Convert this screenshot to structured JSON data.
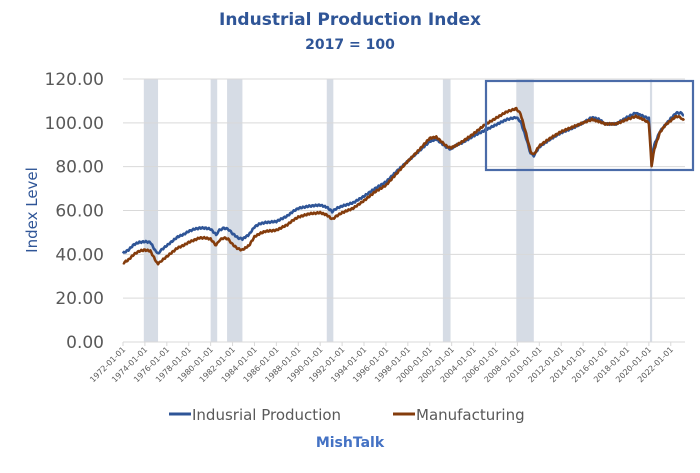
{
  "chart_data": {
    "type": "line",
    "title": "Industrial Production Index",
    "subtitle": "2017 = 100",
    "ylabel": "Index Level",
    "xlabel": "",
    "ylim": [
      0,
      120
    ],
    "xlim": [
      1972.0,
      2023.3
    ],
    "y_ticks": [
      "0.00",
      "20.00",
      "40.00",
      "60.00",
      "80.00",
      "100.00",
      "120.00"
    ],
    "y_tick_values": [
      0,
      20,
      40,
      60,
      80,
      100,
      120
    ],
    "x_ticks": [
      "1972-01-01",
      "1974-01-01",
      "1976-01-01",
      "1978-01-01",
      "1980-01-01",
      "1982-01-01",
      "1984-01-01",
      "1986-01-01",
      "1988-01-01",
      "1990-01-01",
      "1992-01-01",
      "1994-01-01",
      "1996-01-01",
      "1998-01-01",
      "2000-01-01",
      "2002-01-01",
      "2004-01-01",
      "2006-01-01",
      "2008-01-01",
      "2010-01-01",
      "2012-01-01",
      "2014-01-01",
      "2016-01-01",
      "2018-01-01",
      "2020-01-01",
      "2022-01-01"
    ],
    "x_tick_values": [
      1972,
      1974,
      1976,
      1978,
      1980,
      1982,
      1984,
      1986,
      1988,
      1990,
      1992,
      1994,
      1996,
      1998,
      2000,
      2002,
      2004,
      2006,
      2008,
      2010,
      2012,
      2014,
      2016,
      2018,
      2020,
      2022
    ],
    "grid": true,
    "legend_position": "bottom",
    "recessions": [
      [
        1973.9,
        1975.2
      ],
      [
        1980.0,
        1980.6
      ],
      [
        1981.5,
        1982.9
      ],
      [
        1990.6,
        1991.2
      ],
      [
        2001.2,
        2001.9
      ],
      [
        2007.9,
        2009.5
      ],
      [
        2020.1,
        2020.3
      ]
    ],
    "highlight_box": {
      "x_range": [
        2004.0,
        2023.8
      ],
      "y_range": [
        78.5,
        119.5
      ]
    },
    "series": [
      {
        "name": "Indusrial Production",
        "color": "#2F5597",
        "x": [
          1972.0,
          1972.5,
          1973.0,
          1973.5,
          1974.0,
          1974.5,
          1975.0,
          1975.2,
          1975.5,
          1976.0,
          1976.5,
          1977.0,
          1977.5,
          1978.0,
          1978.5,
          1979.0,
          1979.5,
          1980.0,
          1980.5,
          1980.8,
          1981.2,
          1981.6,
          1982.0,
          1982.5,
          1982.9,
          1983.5,
          1984.0,
          1984.5,
          1985.0,
          1986.0,
          1987.0,
          1987.5,
          1988.0,
          1989.0,
          1990.0,
          1990.6,
          1991.1,
          1991.5,
          1992.0,
          1993.0,
          1994.0,
          1995.0,
          1996.0,
          1997.0,
          1998.0,
          1999.0,
          2000.0,
          2000.6,
          2001.5,
          2001.9,
          2002.5,
          2003.0,
          2004.0,
          2005.0,
          2006.0,
          2007.0,
          2007.9,
          2008.3,
          2008.8,
          2009.2,
          2009.5,
          2010.0,
          2011.0,
          2012.0,
          2013.0,
          2014.0,
          2014.8,
          2015.5,
          2016.0,
          2017.0,
          2018.0,
          2018.8,
          2019.5,
          2020.0,
          2020.25,
          2020.5,
          2021.0,
          2021.5,
          2022.0,
          2022.5,
          2022.9,
          2023.2
        ],
        "values": [
          40.5,
          42,
          44.5,
          45.5,
          45.8,
          45.5,
          41.2,
          40.5,
          42,
          44,
          46,
          48,
          49,
          50.5,
          51.5,
          52,
          52,
          51.5,
          49,
          51,
          52,
          51.5,
          49.5,
          47.5,
          47,
          49,
          52.5,
          54,
          54.5,
          55,
          57.5,
          59.5,
          61,
          62,
          62.5,
          61.5,
          59.5,
          61,
          62,
          63.5,
          66.5,
          70,
          73,
          78,
          82.5,
          87,
          91.5,
          92.5,
          89,
          88,
          90,
          91,
          94,
          96.5,
          99,
          101.5,
          102.5,
          100.5,
          93,
          86,
          85,
          89,
          92.5,
          95.5,
          97.5,
          100,
          102.5,
          101.5,
          99.5,
          99.5,
          102.5,
          104.5,
          103,
          102,
          84,
          90,
          96,
          99,
          102,
          104.5,
          104.5,
          103.5
        ]
      },
      {
        "name": "Manufacturing",
        "color": "#843C0C",
        "x": [
          1972.0,
          1972.5,
          1973.0,
          1973.5,
          1974.0,
          1974.5,
          1975.0,
          1975.2,
          1975.5,
          1976.0,
          1976.5,
          1977.0,
          1977.5,
          1978.0,
          1978.5,
          1979.0,
          1979.5,
          1980.0,
          1980.5,
          1980.8,
          1981.2,
          1981.6,
          1982.0,
          1982.5,
          1982.9,
          1983.5,
          1984.0,
          1984.5,
          1985.0,
          1986.0,
          1987.0,
          1987.5,
          1988.0,
          1989.0,
          1990.0,
          1990.6,
          1991.1,
          1991.5,
          1992.0,
          1993.0,
          1994.0,
          1995.0,
          1996.0,
          1997.0,
          1998.0,
          1999.0,
          2000.0,
          2000.6,
          2001.5,
          2001.9,
          2002.5,
          2003.0,
          2004.0,
          2005.0,
          2006.0,
          2007.0,
          2007.9,
          2008.3,
          2008.8,
          2009.2,
          2009.5,
          2010.0,
          2011.0,
          2012.0,
          2013.0,
          2014.0,
          2014.8,
          2015.5,
          2016.0,
          2017.0,
          2018.0,
          2018.8,
          2019.5,
          2020.0,
          2020.25,
          2020.5,
          2021.0,
          2021.5,
          2022.0,
          2022.5,
          2022.9,
          2023.2
        ],
        "values": [
          36,
          37.5,
          40,
          41.5,
          42,
          41.5,
          37,
          35.5,
          37,
          39,
          41,
          43,
          44,
          45.5,
          46.5,
          47.5,
          47.5,
          47,
          44,
          46.5,
          47.5,
          47,
          44.5,
          42.5,
          42,
          44,
          48,
          49.5,
          50.5,
          51,
          53.5,
          55.5,
          57,
          58.5,
          59,
          58,
          56,
          57.5,
          59,
          61,
          64.5,
          68.5,
          71.5,
          77,
          82.5,
          87.5,
          93,
          93.5,
          89.5,
          88.5,
          90,
          91.5,
          95,
          99,
          102,
          105,
          106.5,
          104,
          95,
          87,
          85.5,
          89.5,
          93,
          96,
          98,
          100,
          101.5,
          100.5,
          99.5,
          99.5,
          101.5,
          103,
          101.5,
          100,
          80.5,
          88,
          95.5,
          99,
          101,
          103,
          102.5,
          101
        ]
      }
    ],
    "footer": "MishTalk"
  }
}
